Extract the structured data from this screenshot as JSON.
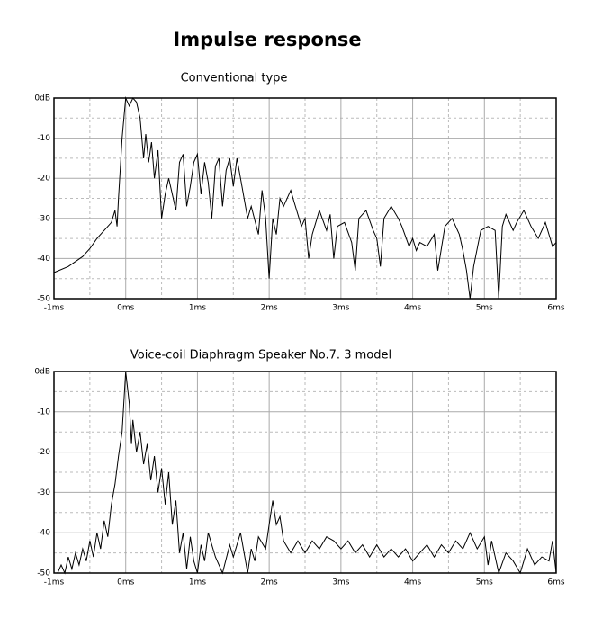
{
  "title": "Impulse response",
  "chart_data": [
    {
      "type": "line",
      "title": "Conventional type",
      "x": [
        -1,
        -0.8,
        -0.6,
        -0.5,
        -0.4,
        -0.3,
        -0.2,
        -0.15,
        -0.12,
        -0.1,
        -0.05,
        0,
        0.05,
        0.1,
        0.15,
        0.2,
        0.25,
        0.28,
        0.32,
        0.36,
        0.4,
        0.45,
        0.5,
        0.55,
        0.6,
        0.65,
        0.7,
        0.75,
        0.8,
        0.85,
        0.9,
        0.95,
        1.0,
        1.05,
        1.1,
        1.15,
        1.2,
        1.25,
        1.3,
        1.35,
        1.4,
        1.45,
        1.5,
        1.55,
        1.6,
        1.7,
        1.75,
        1.85,
        1.9,
        1.95,
        2.0,
        2.05,
        2.1,
        2.15,
        2.2,
        2.3,
        2.35,
        2.45,
        2.5,
        2.55,
        2.6,
        2.7,
        2.8,
        2.85,
        2.9,
        2.95,
        3.05,
        3.15,
        3.2,
        3.25,
        3.35,
        3.45,
        3.5,
        3.55,
        3.6,
        3.7,
        3.8,
        3.85,
        3.95,
        4.0,
        4.05,
        4.1,
        4.2,
        4.3,
        4.35,
        4.45,
        4.55,
        4.65,
        4.7,
        4.75,
        4.8,
        4.85,
        4.95,
        5.05,
        5.15,
        5.2,
        5.25,
        5.3,
        5.4,
        5.45,
        5.55,
        5.65,
        5.75,
        5.85,
        5.95,
        6.0
      ],
      "series": [
        {
          "color": "#000000",
          "values": [
            -43.5,
            -42,
            -39.5,
            -37.5,
            -35,
            -33,
            -31,
            -28,
            -32,
            -25,
            -10,
            0,
            -2,
            0,
            -1,
            -5,
            -15,
            -9,
            -16,
            -11,
            -20,
            -13,
            -30,
            -24,
            -20,
            -24,
            -28,
            -16,
            -14,
            -27,
            -22,
            -16,
            -14,
            -24,
            -16,
            -21,
            -30,
            -17,
            -15,
            -27,
            -18,
            -15,
            -22,
            -15,
            -20,
            -30,
            -27,
            -34,
            -23,
            -30,
            -45,
            -30,
            -34,
            -25,
            -27,
            -23,
            -26,
            -32,
            -30,
            -40,
            -34,
            -28,
            -33,
            -29,
            -40,
            -32,
            -31,
            -36,
            -43,
            -30,
            -28,
            -33,
            -35,
            -42,
            -30,
            -27,
            -30,
            -32,
            -37,
            -35,
            -38,
            -36,
            -37,
            -34,
            -43,
            -32,
            -30,
            -34,
            -38,
            -43,
            -50,
            -42,
            -33,
            -32,
            -33,
            -50,
            -32,
            -29,
            -33,
            -31,
            -28,
            -32,
            -35,
            -31,
            -37,
            -36
          ]
        }
      ],
      "xlim": [
        -1,
        6
      ],
      "xticks": [
        {
          "value": -1,
          "label": "-1ms"
        },
        {
          "value": 0,
          "label": "0ms"
        },
        {
          "value": 1,
          "label": "1ms"
        },
        {
          "value": 2,
          "label": "2ms"
        },
        {
          "value": 3,
          "label": "3ms"
        },
        {
          "value": 4,
          "label": "4ms"
        },
        {
          "value": 5,
          "label": "5ms"
        },
        {
          "value": 6,
          "label": "6ms"
        }
      ],
      "ylim": [
        -50,
        0
      ],
      "yticks": [
        {
          "value": 0,
          "label": "0dB"
        },
        -10,
        -20,
        -30,
        -40,
        -50
      ],
      "grid": true,
      "minor_grid": true
    },
    {
      "type": "line",
      "title": "Voice-coil Diaphragm Speaker No.7. 3 model",
      "x": [
        -0.95,
        -0.9,
        -0.85,
        -0.8,
        -0.75,
        -0.7,
        -0.65,
        -0.6,
        -0.55,
        -0.5,
        -0.45,
        -0.4,
        -0.35,
        -0.3,
        -0.25,
        -0.2,
        -0.15,
        -0.1,
        -0.05,
        0,
        0.05,
        0.08,
        0.1,
        0.15,
        0.2,
        0.25,
        0.3,
        0.35,
        0.4,
        0.45,
        0.5,
        0.55,
        0.6,
        0.65,
        0.7,
        0.75,
        0.8,
        0.85,
        0.9,
        0.95,
        1.0,
        1.05,
        1.1,
        1.15,
        1.25,
        1.35,
        1.45,
        1.5,
        1.6,
        1.7,
        1.75,
        1.8,
        1.85,
        1.95,
        2.0,
        2.05,
        2.1,
        2.15,
        2.2,
        2.3,
        2.4,
        2.5,
        2.6,
        2.7,
        2.8,
        2.9,
        3.0,
        3.1,
        3.2,
        3.3,
        3.4,
        3.5,
        3.6,
        3.7,
        3.8,
        3.9,
        4.0,
        4.1,
        4.2,
        4.3,
        4.4,
        4.5,
        4.6,
        4.7,
        4.8,
        4.9,
        5.0,
        5.05,
        5.1,
        5.2,
        5.3,
        5.4,
        5.5,
        5.6,
        5.7,
        5.8,
        5.9,
        5.95,
        6.0
      ],
      "series": [
        {
          "color": "#000000",
          "values": [
            -50,
            -48,
            -50,
            -46,
            -49,
            -45,
            -48,
            -44,
            -47,
            -42,
            -46,
            -40,
            -44,
            -37,
            -41,
            -33,
            -28,
            -21,
            -15,
            0,
            -8,
            -18,
            -12,
            -20,
            -15,
            -23,
            -18,
            -27,
            -21,
            -30,
            -24,
            -33,
            -25,
            -38,
            -32,
            -45,
            -40,
            -49,
            -41,
            -47,
            -50,
            -43,
            -47,
            -40,
            -46,
            -50,
            -43,
            -46,
            -40,
            -50,
            -44,
            -47,
            -41,
            -44,
            -38,
            -32,
            -38,
            -36,
            -42,
            -45,
            -42,
            -45,
            -42,
            -44,
            -41,
            -42,
            -44,
            -42,
            -45,
            -43,
            -46,
            -43,
            -46,
            -44,
            -46,
            -44,
            -47,
            -45,
            -43,
            -46,
            -43,
            -45,
            -42,
            -44,
            -40,
            -44,
            -41,
            -48,
            -42,
            -50,
            -45,
            -47,
            -50,
            -44,
            -48,
            -46,
            -47,
            -42,
            -50
          ]
        }
      ],
      "xlim": [
        -1,
        6
      ],
      "xticks": [
        {
          "value": -1,
          "label": "-1ms"
        },
        {
          "value": 0,
          "label": "0ms"
        },
        {
          "value": 1,
          "label": "1ms"
        },
        {
          "value": 2,
          "label": "2ms"
        },
        {
          "value": 3,
          "label": "3ms"
        },
        {
          "value": 4,
          "label": "4ms"
        },
        {
          "value": 5,
          "label": "5ms"
        },
        {
          "value": 6,
          "label": "6ms"
        }
      ],
      "ylim": [
        -50,
        0
      ],
      "yticks": [
        {
          "value": 0,
          "label": "0dB"
        },
        -10,
        -20,
        -30,
        -40,
        -50
      ],
      "grid": true,
      "minor_grid": true
    }
  ]
}
